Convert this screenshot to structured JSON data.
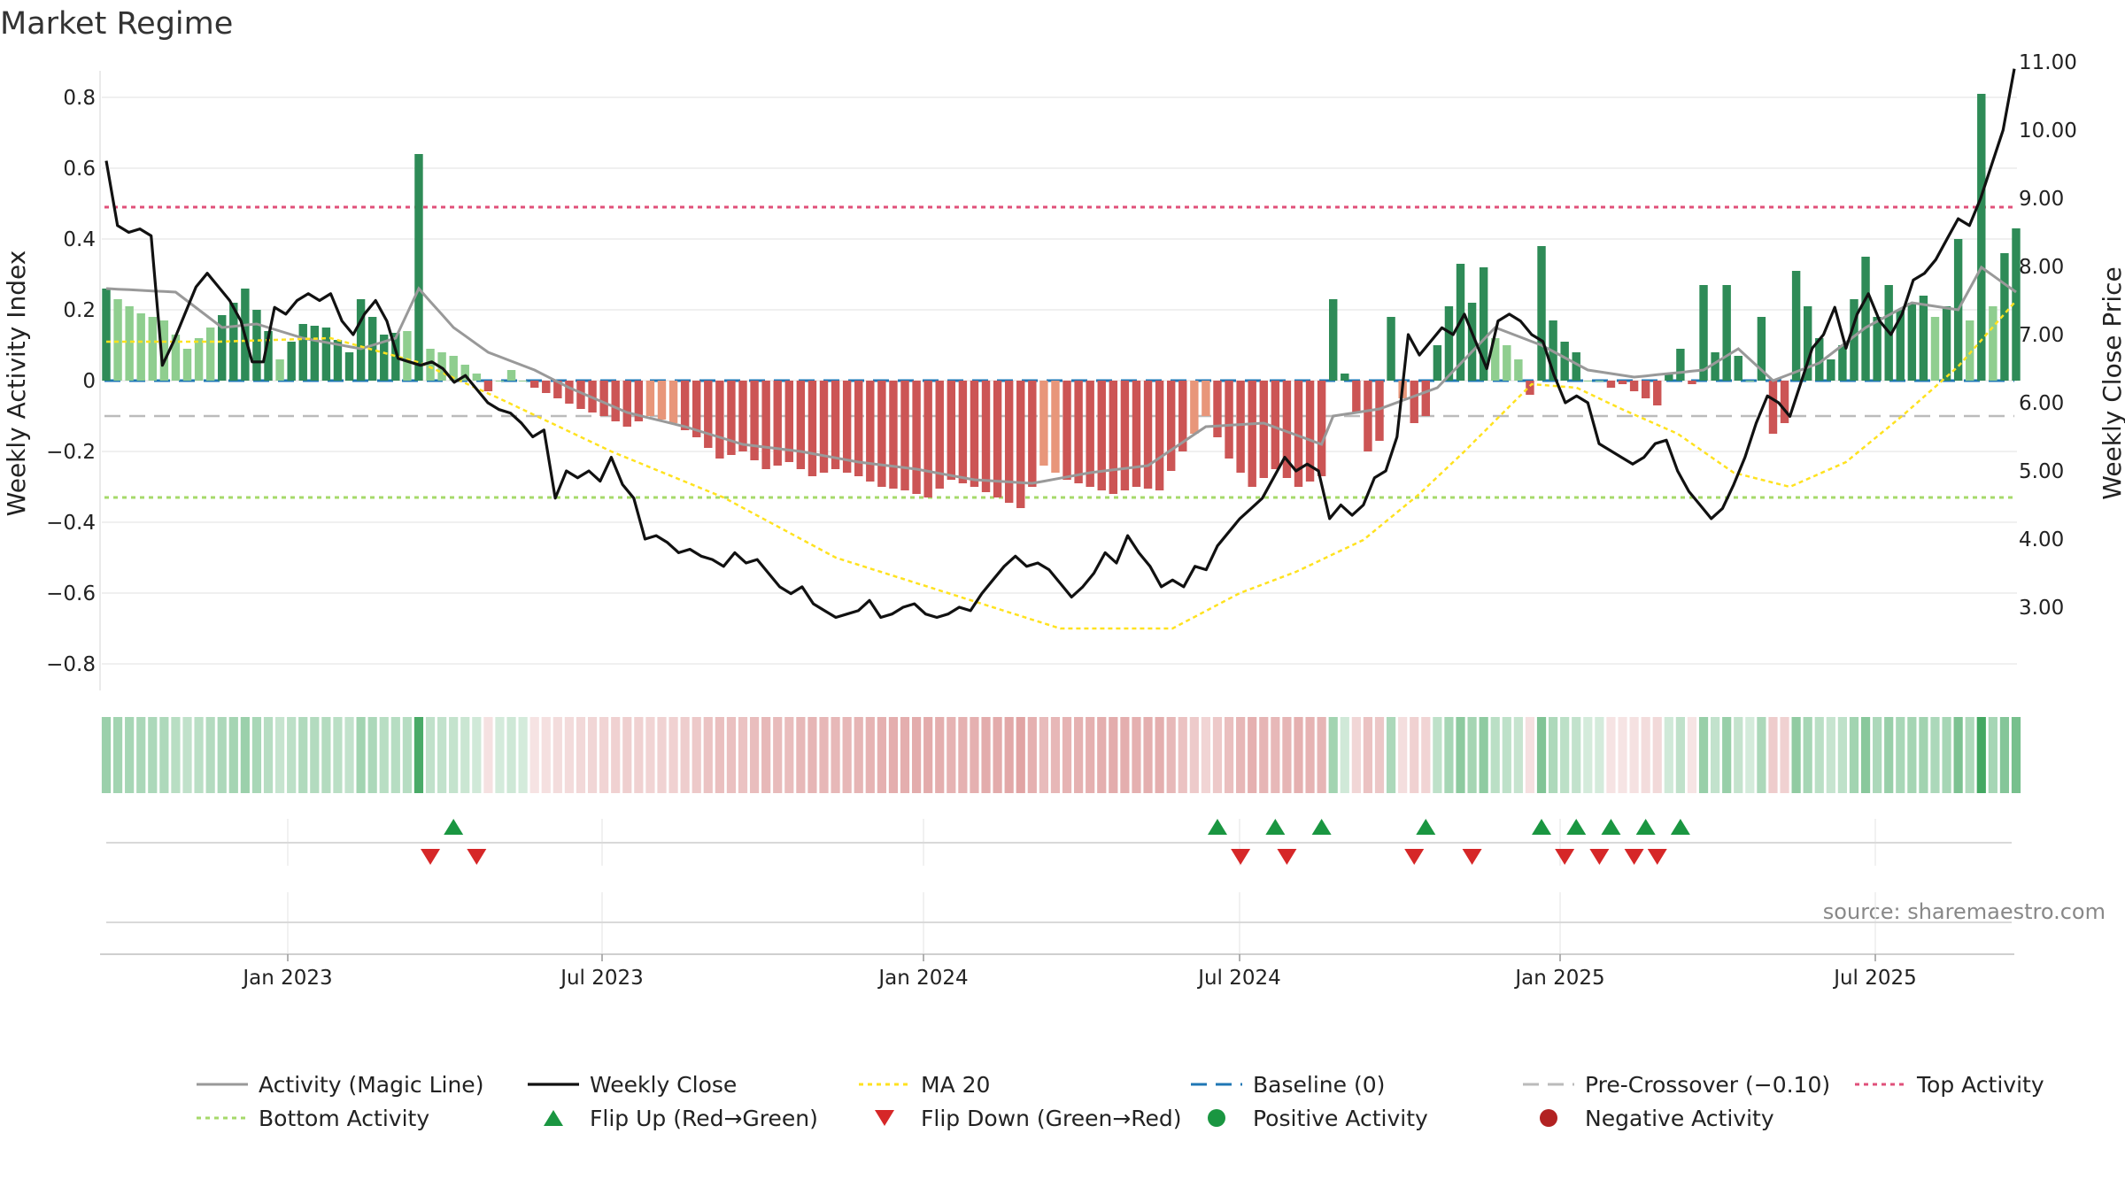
{
  "title": "Market Regime",
  "source_text": "source: sharemaestro.com",
  "colors": {
    "green_dark": "#2e8b57",
    "green_light": "#8fce8f",
    "red_dark": "#cc5555",
    "red_light": "#e8967a",
    "close": "#111111",
    "magic": "#999999",
    "ma20": "#ffe21f",
    "baseline": "#1f77b4",
    "precross": "#bbbbbb",
    "top": "#e0507a",
    "bottom": "#a6d96a",
    "flip_up": "#1a9641",
    "flip_down": "#d62728"
  },
  "chart_data": {
    "type": "bar",
    "x_ticks": [
      "Jan 2023",
      "Jul 2023",
      "Jan 2024",
      "Jul 2024",
      "Jan 2025",
      "Jul 2025"
    ],
    "y_left": {
      "label": "Weekly Activity Index",
      "ylim": [
        -0.87,
        0.9
      ],
      "ticks": [
        0.8,
        0.6,
        0.4,
        0.2,
        0,
        -0.2,
        -0.4,
        -0.6,
        -0.8
      ],
      "tick_labels": [
        "0.8",
        "0.6",
        "0.4",
        "0.2",
        "0",
        "−0.2",
        "−0.4",
        "−0.6",
        "−0.8"
      ]
    },
    "y_right": {
      "label": "Weekly Close Price",
      "ylim": [
        2.6,
        11.2
      ],
      "ticks": [
        11,
        10,
        9,
        8,
        7,
        6,
        5,
        4,
        3
      ],
      "tick_labels": [
        "11.00",
        "10.00",
        "9.00",
        "8.00",
        "7.00",
        "6.00",
        "5.00",
        "4.00",
        "3.00"
      ]
    },
    "reference_lines": {
      "top_activity": 0.49,
      "pre_crossover": -0.1,
      "bottom_activity": -0.33,
      "baseline": 0
    },
    "activity_keypoints": [
      [
        0,
        0.26
      ],
      [
        1,
        0.23
      ],
      [
        3,
        0.19
      ],
      [
        5,
        0.17
      ],
      [
        7,
        0.09
      ],
      [
        9,
        0.15
      ],
      [
        11,
        0.22
      ],
      [
        12,
        0.26
      ],
      [
        14,
        0.14
      ],
      [
        15,
        0.06
      ],
      [
        17,
        0.16
      ],
      [
        19,
        0.15
      ],
      [
        21,
        0.08
      ],
      [
        22,
        0.23
      ],
      [
        24,
        0.13
      ],
      [
        26,
        0.14
      ],
      [
        27,
        0.64
      ],
      [
        28,
        0.09
      ],
      [
        30,
        0.07
      ],
      [
        32,
        0.02
      ],
      [
        33,
        -0.03
      ],
      [
        34,
        0.0
      ],
      [
        35,
        0.03
      ],
      [
        36,
        0.0
      ],
      [
        37,
        -0.02
      ],
      [
        39,
        -0.05
      ],
      [
        41,
        -0.08
      ],
      [
        43,
        -0.1
      ],
      [
        45,
        -0.13
      ],
      [
        47,
        -0.1
      ],
      [
        49,
        -0.12
      ],
      [
        51,
        -0.16
      ],
      [
        53,
        -0.22
      ],
      [
        55,
        -0.2
      ],
      [
        57,
        -0.25
      ],
      [
        59,
        -0.23
      ],
      [
        61,
        -0.27
      ],
      [
        63,
        -0.25
      ],
      [
        65,
        -0.27
      ],
      [
        67,
        -0.3
      ],
      [
        69,
        -0.31
      ],
      [
        71,
        -0.33
      ],
      [
        73,
        -0.28
      ],
      [
        75,
        -0.3
      ],
      [
        77,
        -0.33
      ],
      [
        79,
        -0.36
      ],
      [
        81,
        -0.24
      ],
      [
        83,
        -0.28
      ],
      [
        85,
        -0.3
      ],
      [
        87,
        -0.32
      ],
      [
        89,
        -0.3
      ],
      [
        91,
        -0.31
      ],
      [
        93,
        -0.2
      ],
      [
        95,
        -0.1
      ],
      [
        97,
        -0.22
      ],
      [
        99,
        -0.3
      ],
      [
        101,
        -0.25
      ],
      [
        103,
        -0.3
      ],
      [
        105,
        -0.27
      ],
      [
        106,
        0.23
      ],
      [
        107,
        0.02
      ],
      [
        109,
        -0.2
      ],
      [
        110,
        -0.17
      ],
      [
        111,
        0.18
      ],
      [
        112,
        -0.05
      ],
      [
        113,
        -0.12
      ],
      [
        114,
        -0.1
      ],
      [
        115,
        0.1
      ],
      [
        116,
        0.21
      ],
      [
        117,
        0.33
      ],
      [
        118,
        0.22
      ],
      [
        119,
        0.32
      ],
      [
        120,
        0.12
      ],
      [
        121,
        0.1
      ],
      [
        122,
        0.06
      ],
      [
        123,
        -0.04
      ],
      [
        124,
        0.38
      ],
      [
        125,
        0.17
      ],
      [
        126,
        0.11
      ],
      [
        127,
        0.08
      ],
      [
        128,
        0.0
      ],
      [
        129,
        0.0
      ],
      [
        130,
        -0.02
      ],
      [
        131,
        -0.01
      ],
      [
        132,
        -0.03
      ],
      [
        133,
        -0.05
      ],
      [
        134,
        -0.07
      ],
      [
        135,
        0.02
      ],
      [
        136,
        0.09
      ],
      [
        137,
        -0.01
      ],
      [
        138,
        0.27
      ],
      [
        139,
        0.08
      ],
      [
        140,
        0.27
      ],
      [
        141,
        0.07
      ],
      [
        142,
        0.0
      ],
      [
        143,
        0.18
      ],
      [
        144,
        -0.15
      ],
      [
        145,
        -0.12
      ],
      [
        146,
        0.31
      ],
      [
        147,
        0.21
      ],
      [
        148,
        0.12
      ],
      [
        149,
        0.06
      ],
      [
        150,
        0.1
      ],
      [
        151,
        0.23
      ],
      [
        152,
        0.35
      ],
      [
        153,
        0.18
      ],
      [
        154,
        0.27
      ],
      [
        155,
        0.2
      ],
      [
        156,
        0.22
      ],
      [
        157,
        0.24
      ],
      [
        158,
        0.18
      ],
      [
        159,
        0.21
      ],
      [
        160,
        0.4
      ],
      [
        161,
        0.17
      ],
      [
        162,
        0.81
      ],
      [
        163,
        0.21
      ],
      [
        164,
        0.36
      ],
      [
        165,
        0.43
      ]
    ],
    "close_keypoints": [
      [
        0,
        9.55
      ],
      [
        1,
        8.6
      ],
      [
        2,
        8.5
      ],
      [
        3,
        8.55
      ],
      [
        4,
        8.45
      ],
      [
        5,
        6.55
      ],
      [
        6,
        6.9
      ],
      [
        7,
        7.3
      ],
      [
        8,
        7.7
      ],
      [
        9,
        7.9
      ],
      [
        10,
        7.7
      ],
      [
        11,
        7.5
      ],
      [
        12,
        7.2
      ],
      [
        13,
        6.6
      ],
      [
        14,
        6.6
      ],
      [
        15,
        7.4
      ],
      [
        16,
        7.3
      ],
      [
        17,
        7.5
      ],
      [
        18,
        7.6
      ],
      [
        19,
        7.5
      ],
      [
        20,
        7.6
      ],
      [
        21,
        7.2
      ],
      [
        22,
        7.0
      ],
      [
        23,
        7.3
      ],
      [
        24,
        7.5
      ],
      [
        25,
        7.2
      ],
      [
        26,
        6.65
      ],
      [
        27,
        6.6
      ],
      [
        28,
        6.55
      ],
      [
        29,
        6.6
      ],
      [
        30,
        6.5
      ],
      [
        31,
        6.3
      ],
      [
        32,
        6.4
      ],
      [
        33,
        6.2
      ],
      [
        34,
        6.0
      ],
      [
        35,
        5.9
      ],
      [
        36,
        5.85
      ],
      [
        37,
        5.7
      ],
      [
        38,
        5.5
      ],
      [
        39,
        5.6
      ],
      [
        40,
        4.6
      ],
      [
        41,
        5.0
      ],
      [
        42,
        4.9
      ],
      [
        43,
        5.0
      ],
      [
        44,
        4.85
      ],
      [
        45,
        5.2
      ],
      [
        46,
        4.8
      ],
      [
        47,
        4.6
      ],
      [
        48,
        4.0
      ],
      [
        49,
        4.05
      ],
      [
        50,
        3.95
      ],
      [
        51,
        3.8
      ],
      [
        52,
        3.85
      ],
      [
        53,
        3.75
      ],
      [
        54,
        3.7
      ],
      [
        55,
        3.6
      ],
      [
        56,
        3.8
      ],
      [
        57,
        3.65
      ],
      [
        58,
        3.7
      ],
      [
        59,
        3.5
      ],
      [
        60,
        3.3
      ],
      [
        61,
        3.2
      ],
      [
        62,
        3.3
      ],
      [
        63,
        3.05
      ],
      [
        64,
        2.95
      ],
      [
        65,
        2.85
      ],
      [
        66,
        2.9
      ],
      [
        67,
        2.95
      ],
      [
        68,
        3.1
      ],
      [
        69,
        2.85
      ],
      [
        70,
        2.9
      ],
      [
        71,
        3.0
      ],
      [
        72,
        3.05
      ],
      [
        73,
        2.9
      ],
      [
        74,
        2.85
      ],
      [
        75,
        2.9
      ],
      [
        76,
        3.0
      ],
      [
        77,
        2.95
      ],
      [
        78,
        3.2
      ],
      [
        79,
        3.4
      ],
      [
        80,
        3.6
      ],
      [
        81,
        3.75
      ],
      [
        82,
        3.6
      ],
      [
        83,
        3.65
      ],
      [
        84,
        3.55
      ],
      [
        85,
        3.35
      ],
      [
        86,
        3.15
      ],
      [
        87,
        3.3
      ],
      [
        88,
        3.5
      ],
      [
        89,
        3.8
      ],
      [
        90,
        3.65
      ],
      [
        91,
        4.05
      ],
      [
        92,
        3.8
      ],
      [
        93,
        3.6
      ],
      [
        94,
        3.3
      ],
      [
        95,
        3.4
      ],
      [
        96,
        3.3
      ],
      [
        97,
        3.6
      ],
      [
        98,
        3.55
      ],
      [
        99,
        3.9
      ],
      [
        100,
        4.1
      ],
      [
        101,
        4.3
      ],
      [
        102,
        4.45
      ],
      [
        103,
        4.6
      ],
      [
        104,
        4.9
      ],
      [
        105,
        5.2
      ],
      [
        106,
        5.0
      ],
      [
        107,
        5.1
      ],
      [
        108,
        5.0
      ],
      [
        109,
        4.3
      ],
      [
        110,
        4.5
      ],
      [
        111,
        4.35
      ],
      [
        112,
        4.5
      ],
      [
        113,
        4.9
      ],
      [
        114,
        5.0
      ],
      [
        115,
        5.5
      ],
      [
        116,
        7.0
      ],
      [
        117,
        6.7
      ],
      [
        118,
        6.9
      ],
      [
        119,
        7.1
      ],
      [
        120,
        7.0
      ],
      [
        121,
        7.3
      ],
      [
        122,
        6.9
      ],
      [
        123,
        6.5
      ],
      [
        124,
        7.2
      ],
      [
        125,
        7.3
      ],
      [
        126,
        7.2
      ],
      [
        127,
        7.0
      ],
      [
        128,
        6.9
      ],
      [
        129,
        6.4
      ],
      [
        130,
        6.0
      ],
      [
        131,
        6.1
      ],
      [
        132,
        6.0
      ],
      [
        133,
        5.4
      ],
      [
        134,
        5.3
      ],
      [
        135,
        5.2
      ],
      [
        136,
        5.1
      ],
      [
        137,
        5.2
      ],
      [
        138,
        5.4
      ],
      [
        139,
        5.45
      ],
      [
        140,
        5.0
      ],
      [
        141,
        4.7
      ],
      [
        142,
        4.5
      ],
      [
        143,
        4.3
      ],
      [
        144,
        4.45
      ],
      [
        145,
        4.8
      ],
      [
        146,
        5.2
      ],
      [
        147,
        5.7
      ],
      [
        148,
        6.1
      ],
      [
        149,
        6.0
      ],
      [
        150,
        5.8
      ],
      [
        151,
        6.3
      ],
      [
        152,
        6.8
      ],
      [
        153,
        7.0
      ],
      [
        154,
        7.4
      ],
      [
        155,
        6.8
      ],
      [
        156,
        7.3
      ],
      [
        157,
        7.6
      ],
      [
        158,
        7.2
      ],
      [
        159,
        7.0
      ],
      [
        160,
        7.3
      ],
      [
        161,
        7.8
      ],
      [
        162,
        7.9
      ],
      [
        163,
        8.1
      ],
      [
        164,
        8.4
      ],
      [
        165,
        8.7
      ],
      [
        166,
        8.6
      ],
      [
        167,
        9.0
      ],
      [
        168,
        9.5
      ],
      [
        169,
        10.0
      ],
      [
        170,
        10.9
      ]
    ],
    "ma20_keypoints": [
      [
        0,
        0.11
      ],
      [
        10,
        0.11
      ],
      [
        20,
        0.12
      ],
      [
        28,
        0.05
      ],
      [
        35,
        -0.05
      ],
      [
        45,
        -0.2
      ],
      [
        55,
        -0.33
      ],
      [
        65,
        -0.5
      ],
      [
        75,
        -0.6
      ],
      [
        85,
        -0.7
      ],
      [
        95,
        -0.7
      ],
      [
        101,
        -0.6
      ],
      [
        106,
        -0.54
      ],
      [
        112,
        -0.45
      ],
      [
        117,
        -0.32
      ],
      [
        121,
        -0.2
      ],
      [
        127,
        -0.01
      ],
      [
        131,
        -0.02
      ],
      [
        135,
        -0.08
      ],
      [
        140,
        -0.15
      ],
      [
        145,
        -0.26
      ],
      [
        150,
        -0.3
      ],
      [
        155,
        -0.23
      ],
      [
        160,
        -0.1
      ],
      [
        165,
        0.04
      ],
      [
        170,
        0.22
      ]
    ],
    "magic_keypoints": [
      [
        0,
        0.26
      ],
      [
        6,
        0.25
      ],
      [
        10,
        0.15
      ],
      [
        13,
        0.16
      ],
      [
        17,
        0.12
      ],
      [
        22,
        0.09
      ],
      [
        25,
        0.12
      ],
      [
        27,
        0.26
      ],
      [
        30,
        0.15
      ],
      [
        33,
        0.08
      ],
      [
        37,
        0.03
      ],
      [
        40,
        -0.02
      ],
      [
        45,
        -0.09
      ],
      [
        50,
        -0.13
      ],
      [
        55,
        -0.18
      ],
      [
        60,
        -0.2
      ],
      [
        65,
        -0.23
      ],
      [
        70,
        -0.25
      ],
      [
        75,
        -0.28
      ],
      [
        80,
        -0.29
      ],
      [
        85,
        -0.26
      ],
      [
        90,
        -0.24
      ],
      [
        95,
        -0.13
      ],
      [
        100,
        -0.12
      ],
      [
        105,
        -0.18
      ],
      [
        106,
        -0.1
      ],
      [
        110,
        -0.08
      ],
      [
        115,
        -0.02
      ],
      [
        120,
        0.15
      ],
      [
        124,
        0.1
      ],
      [
        128,
        0.03
      ],
      [
        132,
        0.01
      ],
      [
        135,
        0.02
      ],
      [
        138,
        0.03
      ],
      [
        141,
        0.09
      ],
      [
        144,
        0.0
      ],
      [
        148,
        0.05
      ],
      [
        152,
        0.15
      ],
      [
        156,
        0.22
      ],
      [
        160,
        0.2
      ],
      [
        162,
        0.32
      ],
      [
        165,
        0.25
      ],
      [
        170,
        0.36
      ]
    ],
    "flip_up_weeks": [
      30,
      96,
      101,
      105,
      114,
      124,
      127,
      130,
      133,
      136
    ],
    "flip_down_weeks": [
      28,
      32,
      98,
      102,
      113,
      118,
      126,
      129,
      132,
      134
    ],
    "legend": [
      {
        "label": "Activity (Magic Line)",
        "kind": "line",
        "color": "#999999",
        "dash": ""
      },
      {
        "label": "Weekly Close",
        "kind": "line",
        "color": "#111111",
        "dash": ""
      },
      {
        "label": "MA 20",
        "kind": "line",
        "color": "#ffe21f",
        "dash": "5,5"
      },
      {
        "label": "Baseline (0)",
        "kind": "line",
        "color": "#1f77b4",
        "dash": "18,10"
      },
      {
        "label": "Pre-Crossover (−0.10)",
        "kind": "line",
        "color": "#bbbbbb",
        "dash": "18,10"
      },
      {
        "label": "Top Activity",
        "kind": "line",
        "color": "#e0507a",
        "dash": "5,5"
      },
      {
        "label": "Bottom Activity",
        "kind": "line",
        "color": "#a6d96a",
        "dash": "5,5"
      },
      {
        "label": "Flip Up (Red→Green)",
        "kind": "triangle-up",
        "color": "#1a9641"
      },
      {
        "label": "Flip Down (Green→Red)",
        "kind": "triangle-down",
        "color": "#d62728"
      },
      {
        "label": "Positive Activity",
        "kind": "dot",
        "color": "#1a9641"
      },
      {
        "label": "Negative Activity",
        "kind": "dot",
        "color": "#b22222"
      }
    ]
  }
}
